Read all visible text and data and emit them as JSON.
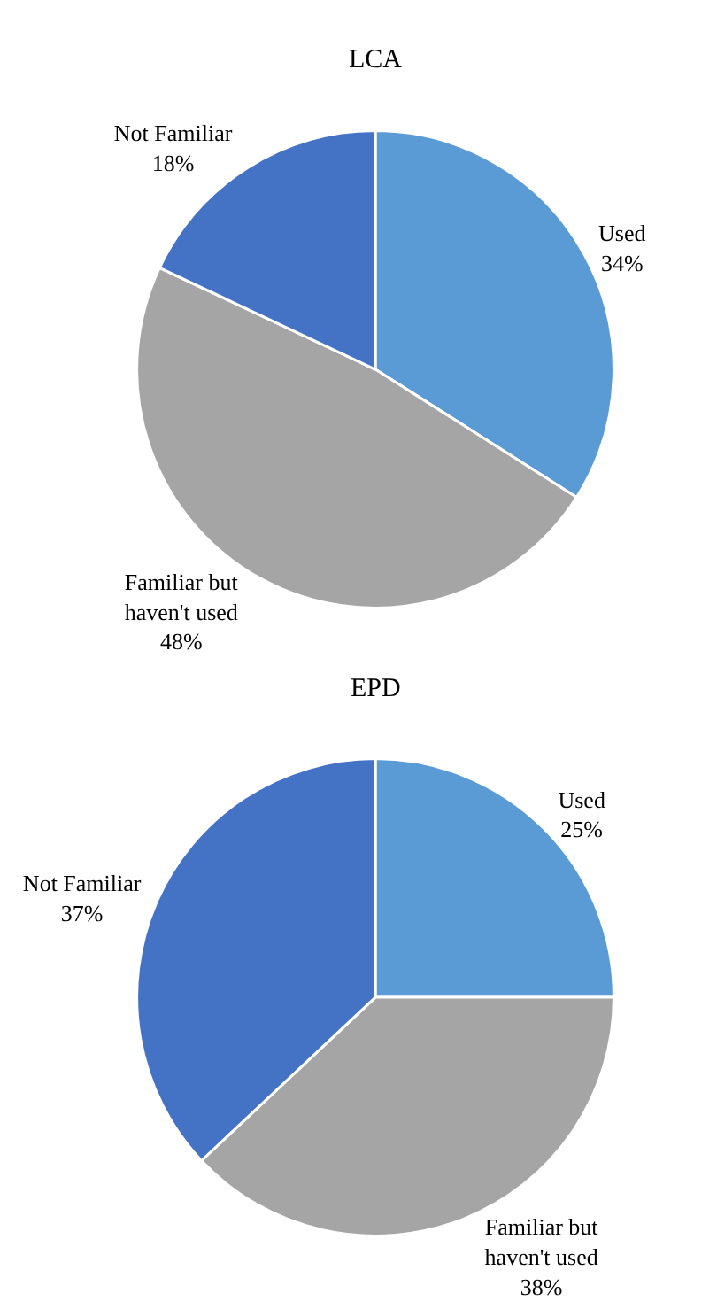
{
  "chart_data": [
    {
      "type": "pie",
      "title": "LCA",
      "categories": [
        "Used",
        "Familiar but haven't used",
        "Not Familiar"
      ],
      "values": [
        34,
        48,
        18
      ],
      "value_labels": [
        "34%",
        "48%",
        "18%"
      ],
      "colors": [
        "#5b9bd5",
        "#a5a5a5",
        "#4472c4"
      ],
      "legend": false
    },
    {
      "type": "pie",
      "title": "EPD",
      "categories": [
        "Used",
        "Familiar but haven't used",
        "Not Familiar"
      ],
      "values": [
        25,
        38,
        37
      ],
      "value_labels": [
        "25%",
        "38%",
        "37%"
      ],
      "colors": [
        "#5b9bd5",
        "#a5a5a5",
        "#4472c4"
      ],
      "legend": false
    }
  ]
}
